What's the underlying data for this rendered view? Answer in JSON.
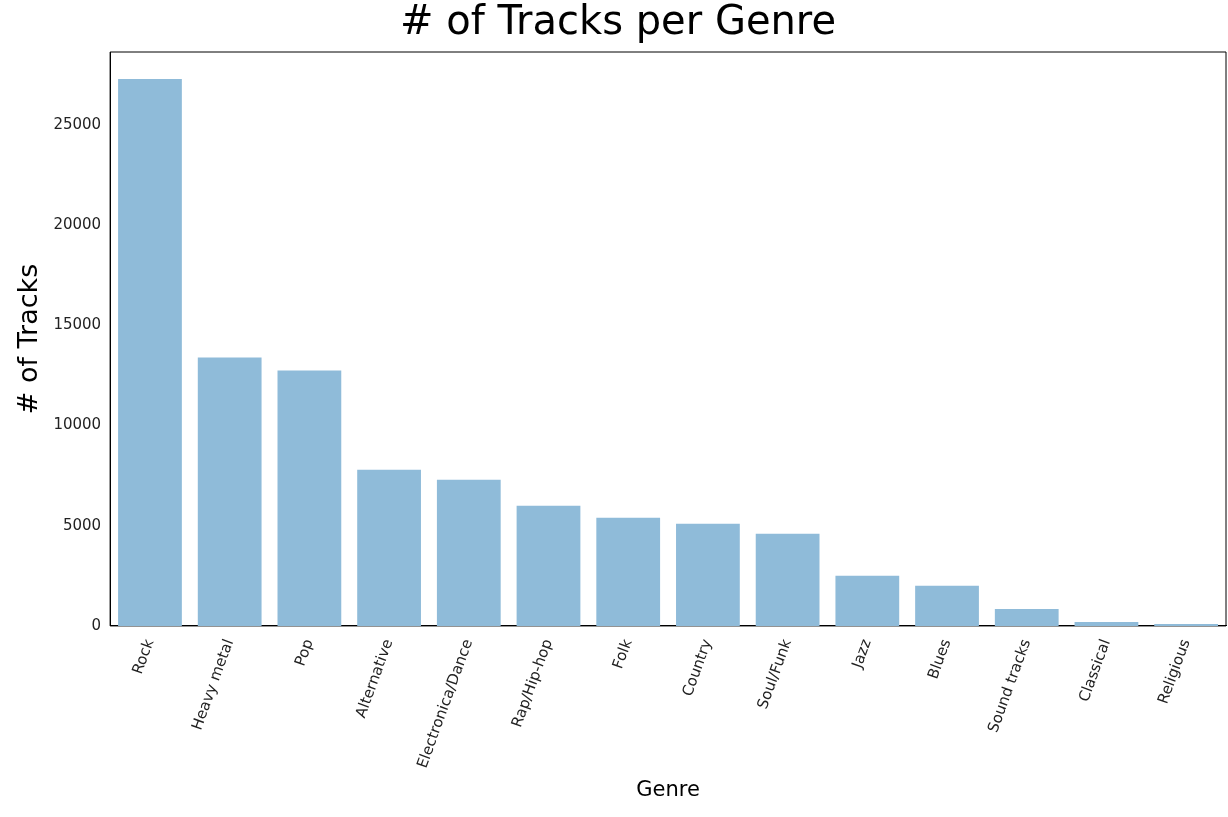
{
  "chart_data": {
    "type": "bar",
    "title": "# of Tracks per Genre",
    "xlabel": "Genre",
    "ylabel": "# of Tracks",
    "categories": [
      "Rock",
      "Heavy metal",
      "Pop",
      "Alternative",
      "Electronica/Dance",
      "Rap/Hip-hop",
      "Folk",
      "Country",
      "Soul/Funk",
      "Jazz",
      "Blues",
      "Sound tracks",
      "Classical",
      "Religious"
    ],
    "values": [
      27300,
      13400,
      12750,
      7800,
      7300,
      6000,
      5400,
      5100,
      4600,
      2500,
      2000,
      850,
      200,
      100
    ],
    "color": "#8fbbd9",
    "ylim": [
      0,
      28650
    ],
    "yticks": [
      0,
      5000,
      10000,
      15000,
      20000,
      25000
    ],
    "grid": false,
    "legend": false
  }
}
